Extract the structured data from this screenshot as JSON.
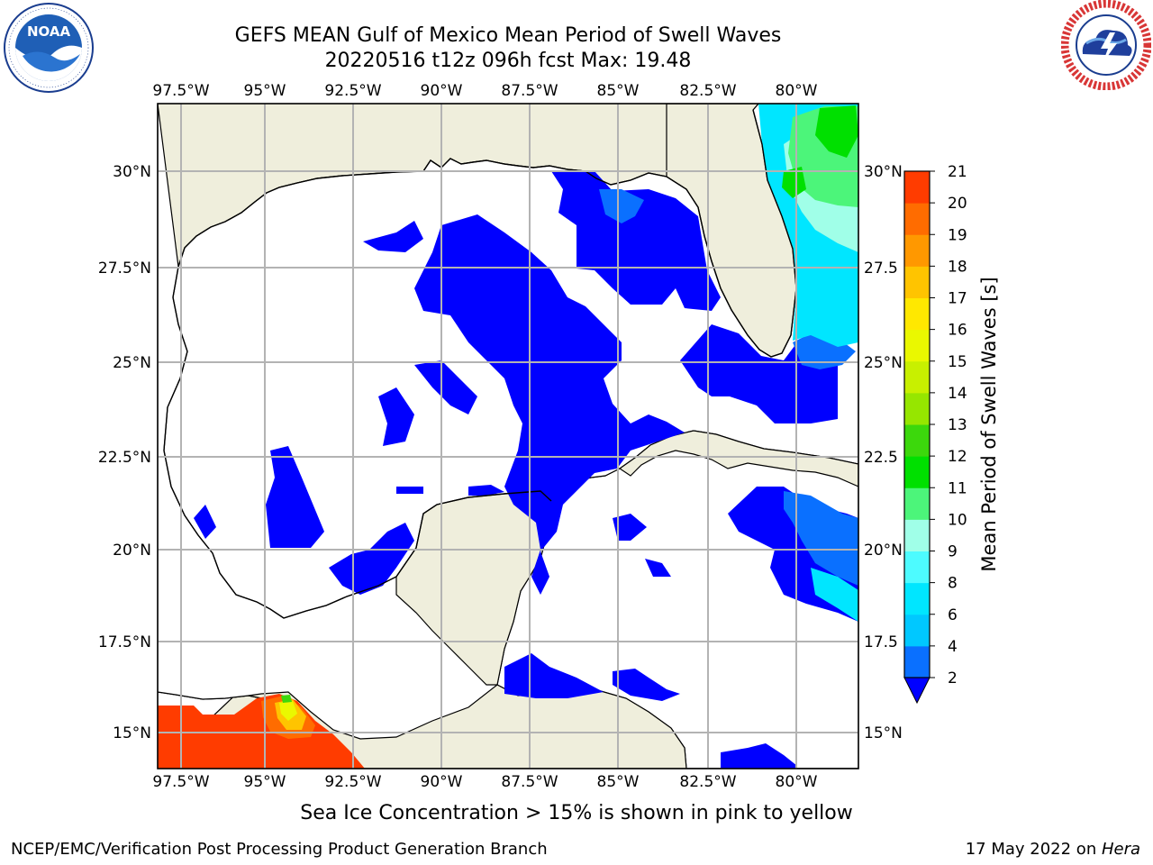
{
  "header": {
    "title_line1": "GEFS MEAN Gulf of Mexico Mean Period of Swell Waves",
    "title_line2": "20220516 t12z 096h fcst   Max: 19.48"
  },
  "logos": {
    "left": {
      "icon": "noaa-logo",
      "text": "NOAA",
      "ring_text": "NATIONAL OCEANIC AND ATMOSPHERIC ADMINISTRATION · U.S. DEPARTMENT OF COMMERCE"
    },
    "right": {
      "icon": "nws-logo",
      "ring_text": "NATIONAL WEATHER SERVICE"
    }
  },
  "map": {
    "lon_labels": [
      "97.5°W",
      "95°W",
      "92.5°W",
      "90°W",
      "87.5°W",
      "85°W",
      "82.5°W",
      "80°W"
    ],
    "lat_labels": [
      "30°N",
      "27.5°N",
      "25°N",
      "22.5°N",
      "20°N",
      "17.5°N",
      "15°N"
    ],
    "right_lat_labels": [
      "30°N",
      "27.5",
      "25°N",
      "22.5",
      "20°N",
      "17.5",
      "15°N"
    ],
    "colors": {
      "land": "#efeedc",
      "ocean": "#ffffff",
      "grid": "#b3b3b3"
    }
  },
  "colorbar": {
    "label": "Mean Period of Swell Waves [s]",
    "ticks": [
      "2",
      "4",
      "6",
      "8",
      "9",
      "10",
      "11",
      "12",
      "13",
      "14",
      "15",
      "16",
      "17",
      "18",
      "19",
      "20",
      "21"
    ],
    "colors": [
      "#0a70ff",
      "#00c8ff",
      "#00e6ff",
      "#4dfbff",
      "#a0ffe8",
      "#4cf57a",
      "#00e000",
      "#3cd80c",
      "#96e600",
      "#c8f000",
      "#eaf800",
      "#ffe800",
      "#ffc400",
      "#ff9800",
      "#ff6c00",
      "#ff3c00",
      "#ff1000"
    ],
    "under_color": "#0000ff"
  },
  "footer": {
    "note": "Sea Ice Concentration > 15% is shown in pink to yellow",
    "left": "NCEP/EMC/Verification Post Processing Product Generation Branch",
    "right_date": "17 May 2022 on ",
    "right_host": "Hera"
  }
}
